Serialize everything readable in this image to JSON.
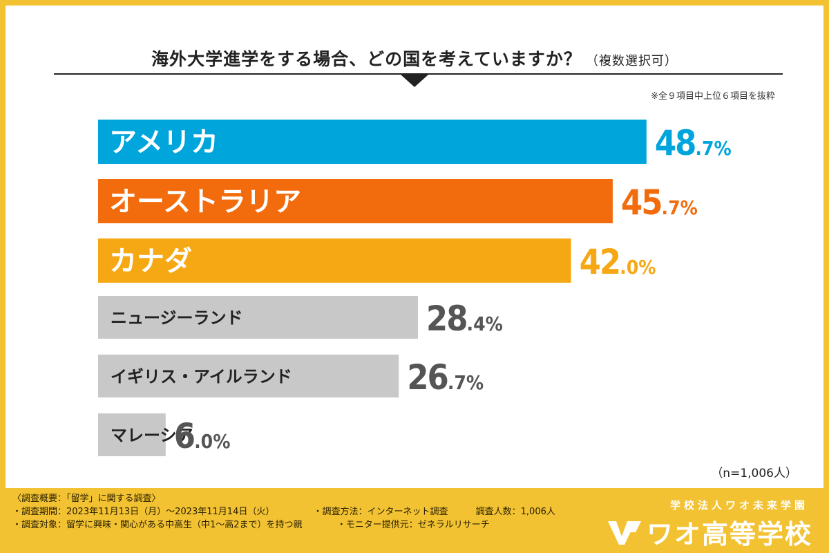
{
  "header": {
    "title": "海外大学進学をする場合、どの国を考えていますか？",
    "title_sub": "（複数選択可）",
    "note": "※全９項目中上位６項目を抜粋"
  },
  "chart_data": {
    "type": "bar",
    "orientation": "horizontal",
    "title": "海外大学進学をする場合、どの国を考えていますか？（複数選択可）",
    "categories": [
      "アメリカ",
      "オーストラリア",
      "カナダ",
      "ニュージーランド",
      "イギリス・アイルランド",
      "マレーシア"
    ],
    "values": [
      48.7,
      45.7,
      42.0,
      28.4,
      26.7,
      6.0
    ],
    "value_int": [
      "48",
      "45",
      "42",
      "28",
      "26",
      "6"
    ],
    "value_dec": [
      ".7",
      ".7",
      ".0",
      ".4",
      ".7",
      ".0"
    ],
    "unit": "%",
    "bar_colors": [
      "#00a5dc",
      "#f26c0d",
      "#f6a814",
      "#c8c8c8",
      "#c8c8c8",
      "#c8c8c8"
    ],
    "label_colors": [
      "#ffffff",
      "#ffffff",
      "#ffffff",
      "#222222",
      "#222222",
      "#222222"
    ],
    "value_colors": [
      "#00a5dc",
      "#f26c0d",
      "#f6a814",
      "#555555",
      "#555555",
      "#555555"
    ],
    "xlim": [
      0,
      100
    ],
    "grid": false,
    "legend": "none"
  },
  "sample_size": "（n=1,006人）",
  "footer": {
    "line1": "〈調査概要：「留学」に関する調査〉",
    "period": "・調査期間：2023年11月13日（月）～2023年11月14日（火）",
    "method": "・調査方法：インターネット調査",
    "count": "調査人数：1,006人",
    "target": "・調査対象：留学に興味・関心がある中高生（中1～高2まで）を持つ親",
    "provider": "・モニター提供元：ゼネラルリサーチ"
  },
  "brand": {
    "corp": "学校法人ワオ未来学園",
    "name": "ワオ高等学校",
    "logo_icon": "wao-logo-icon"
  },
  "colors": {
    "frame": "#f2c233",
    "accent_blue": "#00a5dc",
    "accent_orange": "#f26c0d",
    "accent_yellow": "#f6a814",
    "neutral_bar": "#c8c8c8"
  }
}
